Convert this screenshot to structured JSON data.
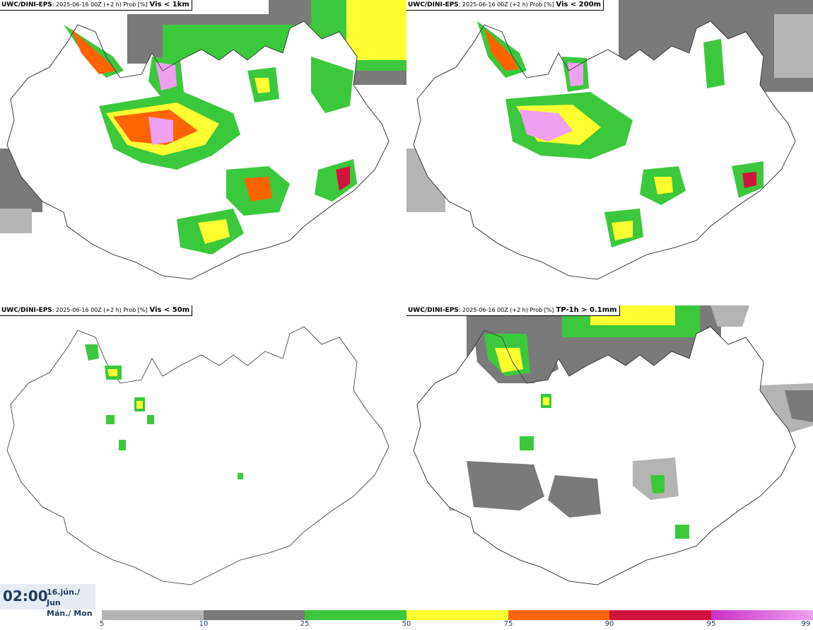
{
  "panels": [
    {
      "source": "UWC/DINI-EPS",
      "run": ": 2025-06-16 00Z (+2 h) Prob [%]",
      "threshold": "Vis < 1km"
    },
    {
      "source": "UWC/DINI-EPS",
      "run": ": 2025-06-16 00Z (+2 h) Prob [%]",
      "threshold": "Vis < 200m"
    },
    {
      "source": "UWC/DINI-EPS",
      "run": ": 2025-06-16 00Z (+2 h) Prob [%]",
      "threshold": "Vis < 50m"
    },
    {
      "source": "UWC/DINI-EPS",
      "run": ": 2025-06-16 00Z (+2 h) Prob [%]",
      "threshold": "TP-1h > 0.1mm"
    }
  ],
  "time": {
    "hour": "02:00",
    "date_line1": "16.jún./ Jun",
    "date_line2": "Mán./ Mon"
  },
  "legend": {
    "labels": [
      "5",
      "10",
      "25",
      "50",
      "75",
      "90",
      "95",
      "99"
    ],
    "colors": [
      "#b4b4b4",
      "#7a7a7a",
      "#3cc83c",
      "#ffff32",
      "#ff6400",
      "#d2143c",
      "#c832c8",
      "#f0a0f0"
    ]
  }
}
